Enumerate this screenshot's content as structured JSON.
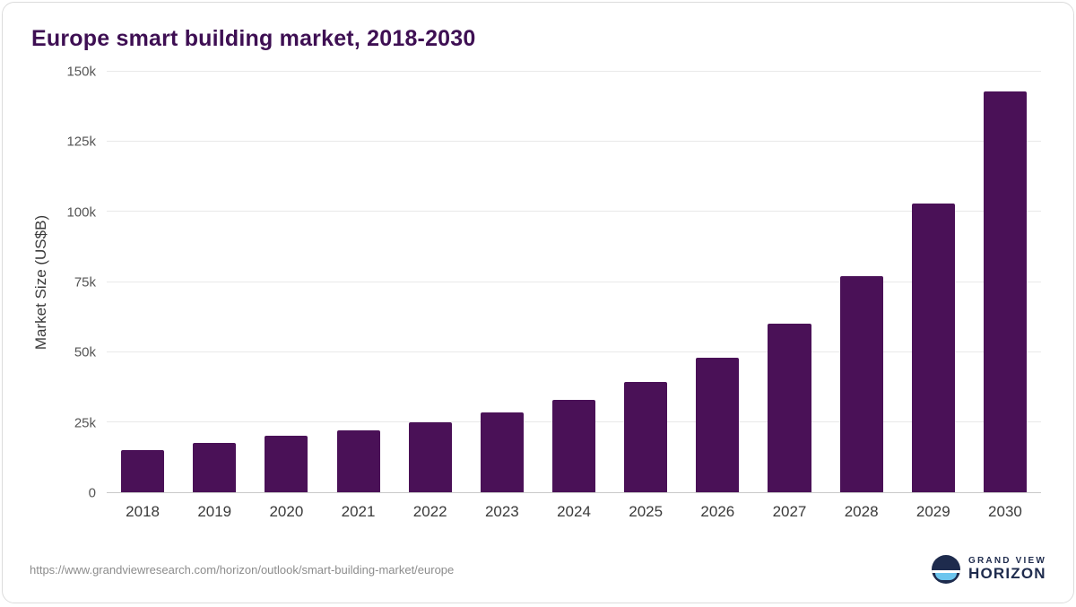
{
  "title": "Europe smart building market, 2018-2030",
  "chart_data": {
    "type": "bar",
    "categories": [
      "2018",
      "2019",
      "2020",
      "2021",
      "2022",
      "2023",
      "2024",
      "2025",
      "2026",
      "2027",
      "2028",
      "2029",
      "2030"
    ],
    "values": [
      15000,
      17500,
      20000,
      22000,
      25000,
      28500,
      33000,
      39500,
      48000,
      60000,
      77000,
      103000,
      143000
    ],
    "title": "Europe smart building market, 2018-2030",
    "xlabel": "",
    "ylabel": "Market Size (US$B)",
    "ylim": [
      0,
      150000
    ],
    "yticks": [
      {
        "value": 0,
        "label": "0"
      },
      {
        "value": 25000,
        "label": "25k"
      },
      {
        "value": 50000,
        "label": "50k"
      },
      {
        "value": 75000,
        "label": "75k"
      },
      {
        "value": 100000,
        "label": "100k"
      },
      {
        "value": 125000,
        "label": "125k"
      },
      {
        "value": 150000,
        "label": "150k"
      }
    ],
    "bar_color": "#4a1157",
    "grid": true,
    "legend_position": "none"
  },
  "colors": {
    "title": "#3e0f53",
    "bar": "#4a1157",
    "gridline": "#e9e9e9",
    "axis_text": "#3a3a3a",
    "logo_navy": "#1e2b4d",
    "logo_blue": "#6cc5ee"
  },
  "footer": {
    "source_url": "https://www.grandviewresearch.com/horizon/outlook/smart-building-market/europe",
    "logo": {
      "line1": "GRAND VIEW",
      "line2": "HORIZON"
    }
  }
}
